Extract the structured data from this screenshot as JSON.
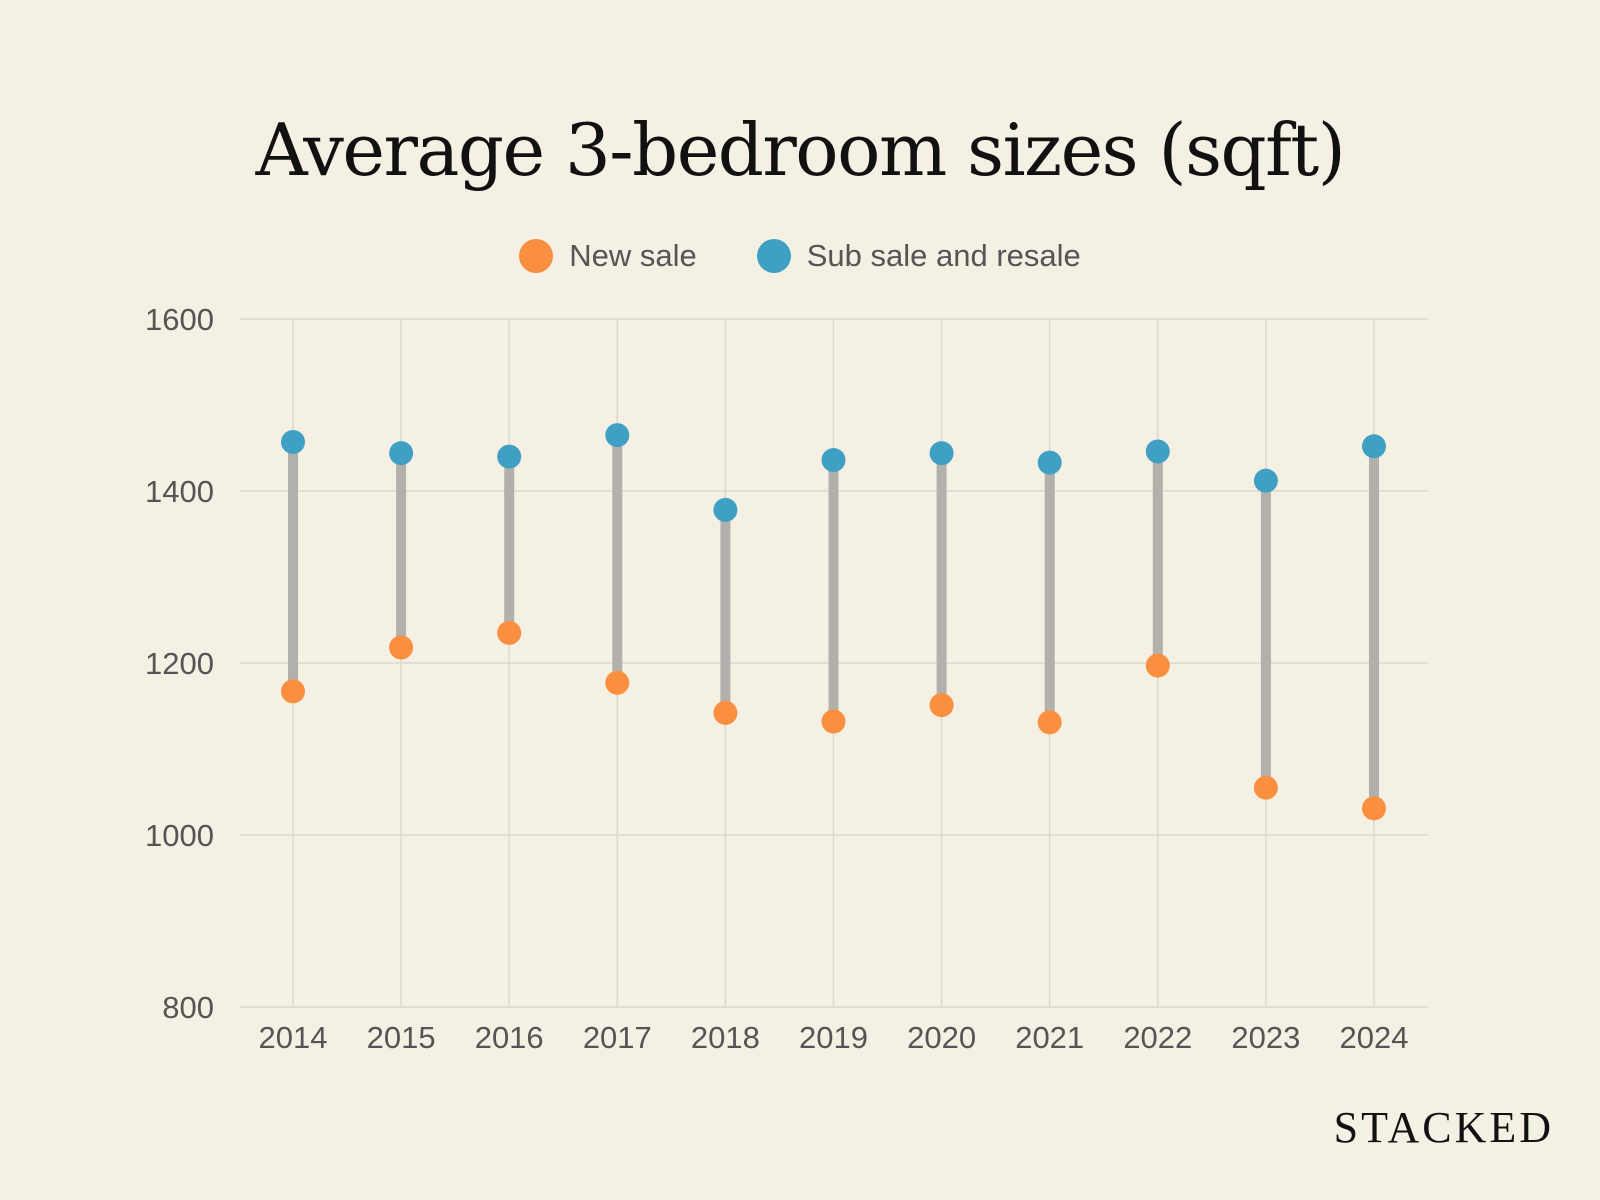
{
  "colors": {
    "new_sale": "#f98f3f",
    "resale": "#40a0c4",
    "connector": "#b2b0ab",
    "grid": "#ddd8ce",
    "tick_text": "#555555",
    "background": "#f5f0e4"
  },
  "brand": "STACKED",
  "chart_data": {
    "type": "dumbbell",
    "title": "Average 3-bedroom sizes (sqft)",
    "xlabel": "",
    "ylabel": "",
    "categories": [
      "2014",
      "2015",
      "2016",
      "2017",
      "2018",
      "2019",
      "2020",
      "2021",
      "2022",
      "2023",
      "2024"
    ],
    "series": [
      {
        "name": "New sale",
        "values": [
          1167,
          1218,
          1235,
          1177,
          1142,
          1132,
          1151,
          1131,
          1197,
          1055,
          1031
        ]
      },
      {
        "name": "Sub sale and resale",
        "values": [
          1457,
          1444,
          1440,
          1465,
          1378,
          1436,
          1444,
          1433,
          1446,
          1412,
          1452
        ]
      }
    ],
    "ylim": [
      800,
      1600
    ],
    "yticks": [
      800,
      1000,
      1200,
      1400,
      1600
    ],
    "grid": true,
    "legend_position": "top-center"
  }
}
